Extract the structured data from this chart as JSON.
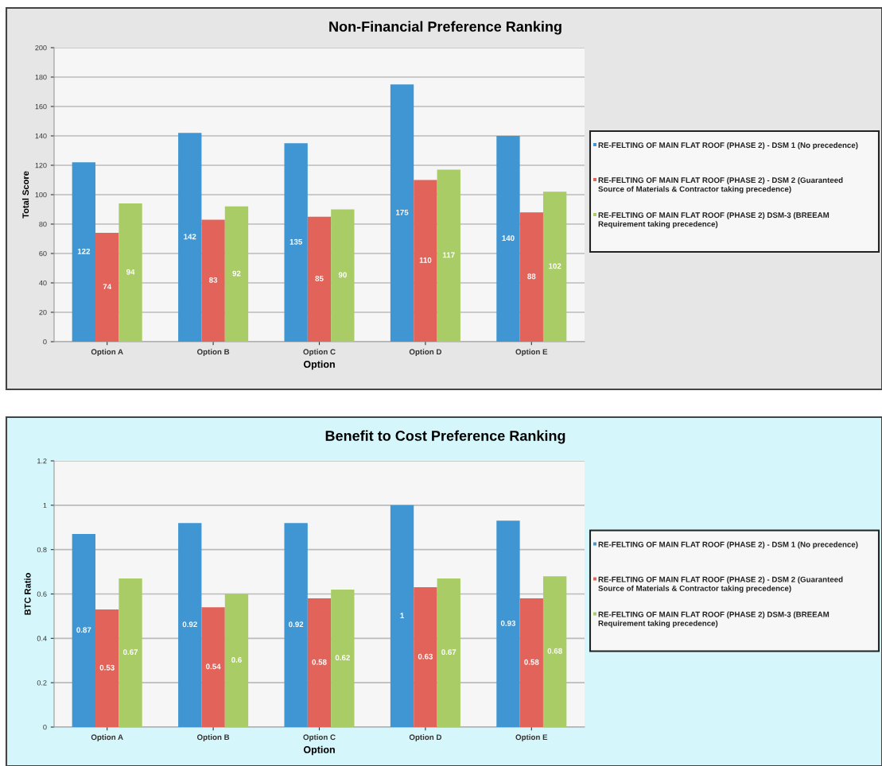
{
  "chart_data": [
    {
      "type": "bar",
      "title": "Non-Financial Preference Ranking",
      "xlabel": "Option",
      "ylabel": "Total Score",
      "categories": [
        "Option A",
        "Option B",
        "Option C",
        "Option D",
        "Option E"
      ],
      "series": [
        {
          "name": "RE-FELTING OF MAIN FLAT ROOF (PHASE 2) - DSM 1 (No precedence)",
          "color": "#3f96d2",
          "values": [
            122,
            142,
            135,
            175,
            140
          ]
        },
        {
          "name": "RE-FELTING OF MAIN FLAT ROOF (PHASE 2) - DSM 2 (Guaranteed Source of Materials & Contractor taking precedence)",
          "color": "#e2635a",
          "values": [
            74,
            83,
            85,
            110,
            88
          ]
        },
        {
          "name": "RE-FELTING OF MAIN FLAT ROOF (PHASE 2) DSM-3 (BREEAM Requirement taking precedence)",
          "color": "#a9cc66",
          "values": [
            94,
            92,
            90,
            117,
            102
          ]
        }
      ],
      "ylim": [
        0,
        200
      ],
      "yticks": [
        0,
        20,
        40,
        60,
        80,
        100,
        120,
        140,
        160,
        180,
        200
      ],
      "grid": "y",
      "legend": "right",
      "data_labels": true
    },
    {
      "type": "bar",
      "title": "Benefit to Cost Preference Ranking",
      "xlabel": "Option",
      "ylabel": "BTC Ratio",
      "categories": [
        "Option A",
        "Option B",
        "Option C",
        "Option D",
        "Option E"
      ],
      "series": [
        {
          "name": "RE-FELTING OF MAIN FLAT ROOF (PHASE 2) - DSM 1 (No precedence)",
          "color": "#3f96d2",
          "values": [
            0.87,
            0.92,
            0.92,
            1,
            0.93
          ]
        },
        {
          "name": "RE-FELTING OF MAIN FLAT ROOF (PHASE 2) - DSM 2 (Guaranteed Source of Materials & Contractor taking precedence)",
          "color": "#e2635a",
          "values": [
            0.53,
            0.54,
            0.58,
            0.63,
            0.58
          ]
        },
        {
          "name": "RE-FELTING OF MAIN FLAT ROOF (PHASE 2) DSM-3 (BREEAM Requirement taking precedence)",
          "color": "#a9cc66",
          "values": [
            0.67,
            0.6,
            0.62,
            0.67,
            0.68
          ]
        }
      ],
      "ylim": [
        0,
        1.2
      ],
      "yticks": [
        0,
        0.2,
        0.4,
        0.6,
        0.8,
        1,
        1.2
      ],
      "grid": "y",
      "legend": "right",
      "data_labels": true
    }
  ]
}
